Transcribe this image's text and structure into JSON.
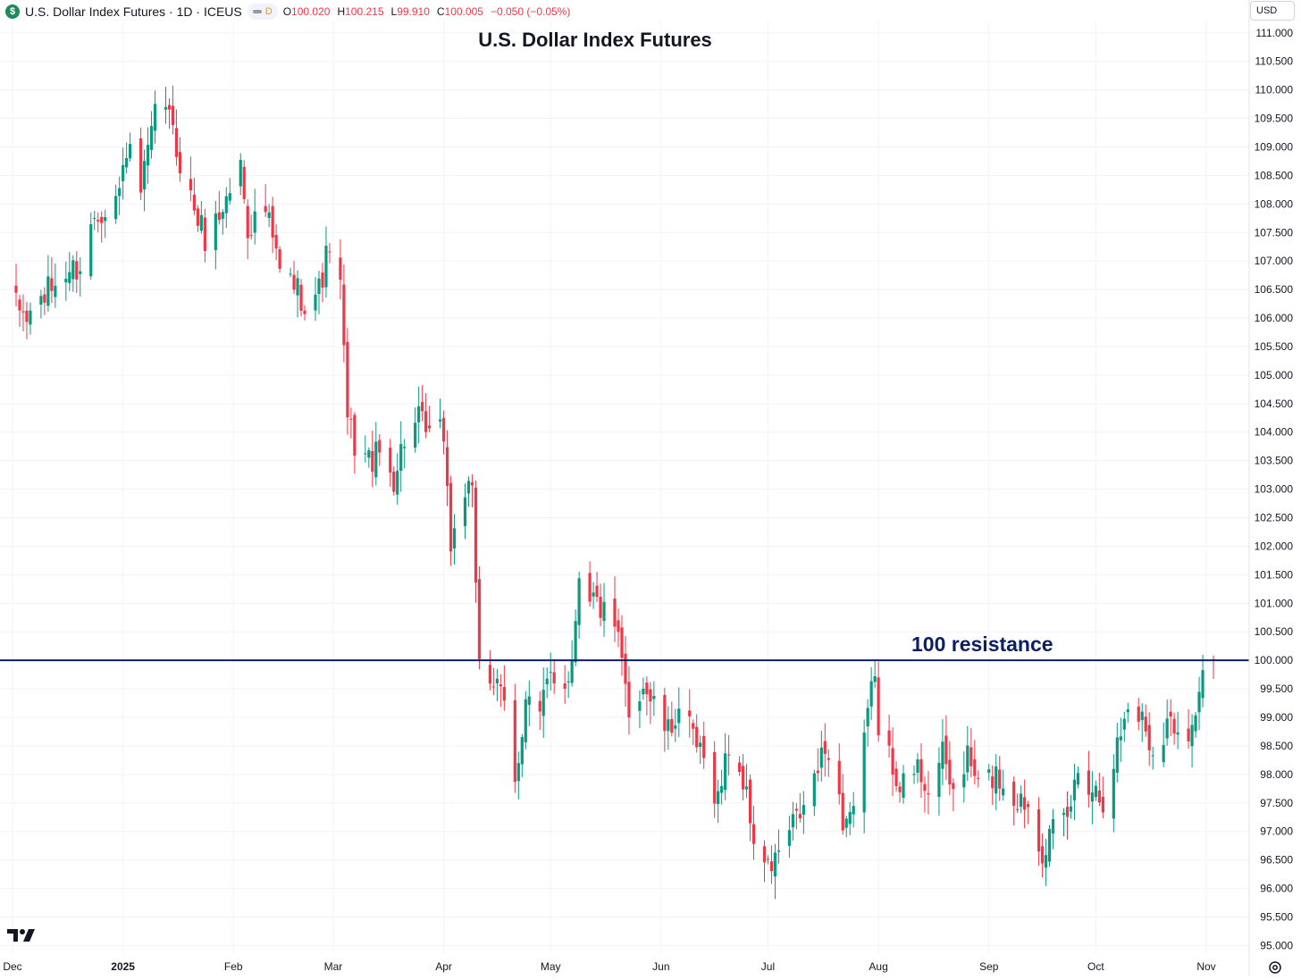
{
  "header": {
    "symbol_icon": "dollar-coin-icon",
    "symbol_text": "U.S. Dollar Index Futures · 1D · ICEUS",
    "pill_label": "D",
    "open_label": "O",
    "open_value": "100.020",
    "high_label": "H",
    "high_value": "100.215",
    "low_label": "L",
    "low_value": "99.910",
    "close_label": "C",
    "close_value": "100.005",
    "change_value": "−0.050 (−0.05%)"
  },
  "currency": "USD",
  "logo": "tradingview-logo-icon",
  "settings_icon": "gear-icon",
  "colors": {
    "up": "#089981",
    "down": "#f23645",
    "resistance": "#0d1f63",
    "grid": "#f0f3fa",
    "title": "#131722"
  },
  "chart_data": {
    "type": "candlestick",
    "title": "U.S. Dollar Index Futures",
    "ylim": [
      94.85,
      111.2
    ],
    "y_ticks": [
      "95.000",
      "95.500",
      "96.000",
      "96.500",
      "97.000",
      "97.500",
      "98.000",
      "98.500",
      "99.000",
      "99.500",
      "100.000",
      "100.500",
      "101.000",
      "101.500",
      "102.000",
      "102.500",
      "103.000",
      "103.500",
      "104.000",
      "104.500",
      "105.000",
      "105.500",
      "106.000",
      "106.500",
      "107.000",
      "107.500",
      "108.000",
      "108.500",
      "109.000",
      "109.500",
      "110.000",
      "110.500",
      "111.000"
    ],
    "x_ticks": [
      {
        "label": "Dec",
        "date": "2024-12-01"
      },
      {
        "label": "2025",
        "date": "2025-01-01"
      },
      {
        "label": "Feb",
        "date": "2025-02-01"
      },
      {
        "label": "Mar",
        "date": "2025-03-01"
      },
      {
        "label": "Apr",
        "date": "2025-04-01"
      },
      {
        "label": "May",
        "date": "2025-05-01"
      },
      {
        "label": "Jun",
        "date": "2025-06-01"
      },
      {
        "label": "Jul",
        "date": "2025-07-01"
      },
      {
        "label": "Aug",
        "date": "2025-08-01"
      },
      {
        "label": "Sep",
        "date": "2025-09-01"
      },
      {
        "label": "Oct",
        "date": "2025-10-01"
      },
      {
        "label": "Nov",
        "date": "2025-11-01"
      }
    ],
    "x_range": [
      "2024-12-01",
      "2025-11-03"
    ],
    "resistance": {
      "value": 100.0,
      "label": "100 resistance"
    },
    "close_path": [
      [
        "2024-12-02",
        106.2
      ],
      [
        "2024-12-05",
        106.0
      ],
      [
        "2024-12-10",
        106.4
      ],
      [
        "2024-12-16",
        106.8
      ],
      [
        "2024-12-20",
        106.9
      ],
      [
        "2024-12-24",
        107.8
      ],
      [
        "2024-12-31",
        108.2
      ],
      [
        "2025-01-02",
        109.0
      ],
      [
        "2025-01-06",
        108.2
      ],
      [
        "2025-01-10",
        109.5
      ],
      [
        "2025-01-13",
        109.8
      ],
      [
        "2025-01-15",
        109.2
      ],
      [
        "2025-01-20",
        108.1
      ],
      [
        "2025-01-24",
        107.4
      ],
      [
        "2025-01-28",
        107.8
      ],
      [
        "2025-02-03",
        108.7
      ],
      [
        "2025-02-05",
        107.6
      ],
      [
        "2025-02-10",
        107.9
      ],
      [
        "2025-02-14",
        106.8
      ],
      [
        "2025-02-18",
        106.6
      ],
      [
        "2025-02-21",
        106.3
      ],
      [
        "2025-02-25",
        106.5
      ],
      [
        "2025-02-28",
        107.3
      ],
      [
        "2025-03-03",
        106.5
      ],
      [
        "2025-03-05",
        104.2
      ],
      [
        "2025-03-07",
        103.8
      ],
      [
        "2025-03-11",
        103.5
      ],
      [
        "2025-03-14",
        103.6
      ],
      [
        "2025-03-18",
        103.2
      ],
      [
        "2025-03-21",
        103.9
      ],
      [
        "2025-03-25",
        104.2
      ],
      [
        "2025-03-28",
        103.9
      ],
      [
        "2025-04-01",
        104.0
      ],
      [
        "2025-04-03",
        102.0
      ],
      [
        "2025-04-07",
        103.0
      ],
      [
        "2025-04-09",
        102.8
      ],
      [
        "2025-04-11",
        100.1
      ],
      [
        "2025-04-15",
        99.6
      ],
      [
        "2025-04-18",
        99.2
      ],
      [
        "2025-04-21",
        97.8
      ],
      [
        "2025-04-24",
        99.4
      ],
      [
        "2025-04-28",
        99.0
      ],
      [
        "2025-05-01",
        99.8
      ],
      [
        "2025-05-05",
        99.6
      ],
      [
        "2025-05-07",
        100.0
      ],
      [
        "2025-05-09",
        101.6
      ],
      [
        "2025-05-12",
        101.2
      ],
      [
        "2025-05-14",
        101.0
      ],
      [
        "2025-05-16",
        100.8
      ],
      [
        "2025-05-20",
        100.3
      ],
      [
        "2025-05-23",
        99.1
      ],
      [
        "2025-05-27",
        99.6
      ],
      [
        "2025-05-30",
        99.2
      ],
      [
        "2025-06-03",
        98.7
      ],
      [
        "2025-06-06",
        99.2
      ],
      [
        "2025-06-10",
        98.6
      ],
      [
        "2025-06-13",
        98.2
      ],
      [
        "2025-06-17",
        97.6
      ],
      [
        "2025-06-20",
        98.5
      ],
      [
        "2025-06-24",
        97.9
      ],
      [
        "2025-06-27",
        96.9
      ],
      [
        "2025-07-01",
        96.3
      ],
      [
        "2025-07-03",
        96.5
      ],
      [
        "2025-07-08",
        97.1
      ],
      [
        "2025-07-11",
        97.4
      ],
      [
        "2025-07-15",
        98.1
      ],
      [
        "2025-07-18",
        98.5
      ],
      [
        "2025-07-22",
        97.2
      ],
      [
        "2025-07-25",
        97.4
      ],
      [
        "2025-07-28",
        98.5
      ],
      [
        "2025-07-31",
        99.9
      ],
      [
        "2025-08-01",
        98.6
      ],
      [
        "2025-08-05",
        98.2
      ],
      [
        "2025-08-08",
        97.8
      ],
      [
        "2025-08-12",
        98.1
      ],
      [
        "2025-08-15",
        97.8
      ],
      [
        "2025-08-19",
        98.3
      ],
      [
        "2025-08-22",
        97.7
      ],
      [
        "2025-08-26",
        98.3
      ],
      [
        "2025-08-29",
        97.8
      ],
      [
        "2025-09-03",
        98.0
      ],
      [
        "2025-09-08",
        97.6
      ],
      [
        "2025-09-12",
        97.5
      ],
      [
        "2025-09-16",
        96.7
      ],
      [
        "2025-09-18",
        96.9
      ],
      [
        "2025-09-23",
        97.2
      ],
      [
        "2025-09-26",
        98.1
      ],
      [
        "2025-09-30",
        97.8
      ],
      [
        "2025-10-03",
        97.6
      ],
      [
        "2025-10-07",
        98.5
      ],
      [
        "2025-10-10",
        99.2
      ],
      [
        "2025-10-14",
        99.0
      ],
      [
        "2025-10-17",
        98.4
      ],
      [
        "2025-10-21",
        98.9
      ],
      [
        "2025-10-24",
        98.9
      ],
      [
        "2025-10-28",
        98.8
      ],
      [
        "2025-10-30",
        99.5
      ],
      [
        "2025-11-03",
        100.0
      ]
    ]
  }
}
